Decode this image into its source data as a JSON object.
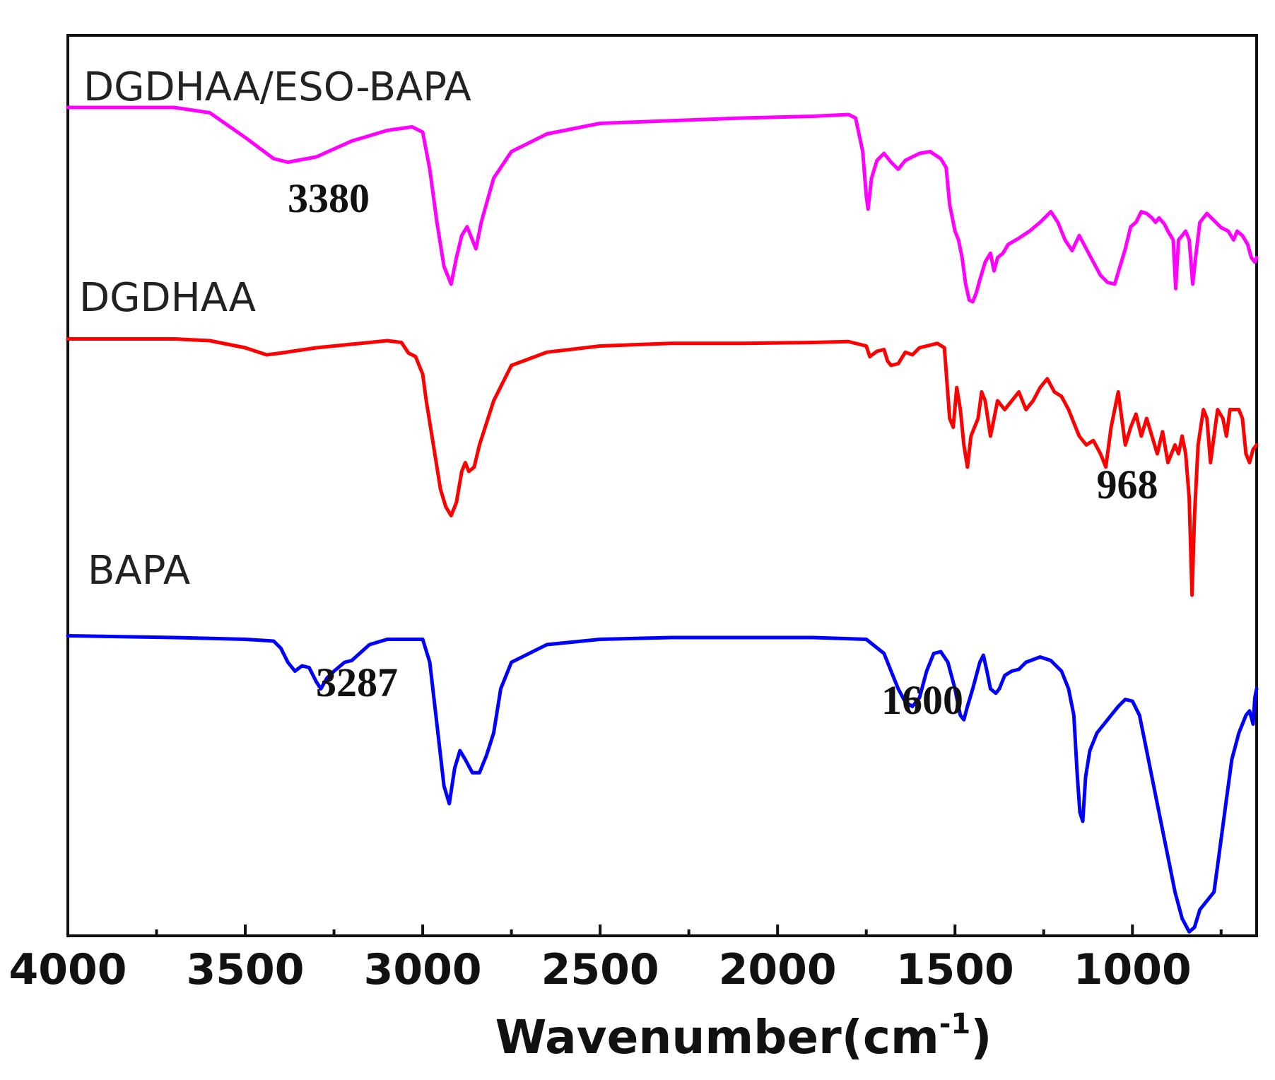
{
  "chart_data": {
    "type": "line",
    "xlabel": "Wavenumber(cm",
    "xlabel_sup": "-1",
    "xlabel_close": ")",
    "xlim": [
      4000,
      650
    ],
    "x_reversed": true,
    "y_axis_ticks_shown": false,
    "grid": false,
    "x_ticks": [
      4000,
      3500,
      3000,
      2500,
      2000,
      1500,
      1000
    ],
    "x_tick_labels": [
      "4000",
      "3500",
      "3000",
      "2500",
      "2000",
      "1500",
      "1000"
    ],
    "series": [
      {
        "name": "DGDHAA/ESO-BAPA",
        "color": "#ff00ff",
        "offset": 0,
        "points": [
          [
            4000,
            0
          ],
          [
            3700,
            0
          ],
          [
            3600,
            -6
          ],
          [
            3500,
            -34
          ],
          [
            3420,
            -58
          ],
          [
            3380,
            -62
          ],
          [
            3300,
            -56
          ],
          [
            3200,
            -38
          ],
          [
            3100,
            -26
          ],
          [
            3030,
            -22
          ],
          [
            3000,
            -28
          ],
          [
            2980,
            -70
          ],
          [
            2960,
            -130
          ],
          [
            2940,
            -180
          ],
          [
            2920,
            -200
          ],
          [
            2905,
            -170
          ],
          [
            2890,
            -145
          ],
          [
            2875,
            -135
          ],
          [
            2860,
            -150
          ],
          [
            2850,
            -160
          ],
          [
            2835,
            -130
          ],
          [
            2800,
            -80
          ],
          [
            2750,
            -50
          ],
          [
            2650,
            -30
          ],
          [
            2500,
            -18
          ],
          [
            2300,
            -15
          ],
          [
            2100,
            -12
          ],
          [
            1900,
            -10
          ],
          [
            1800,
            -8
          ],
          [
            1780,
            -12
          ],
          [
            1760,
            -50
          ],
          [
            1750,
            -100
          ],
          [
            1745,
            -115
          ],
          [
            1735,
            -80
          ],
          [
            1720,
            -60
          ],
          [
            1700,
            -52
          ],
          [
            1680,
            -62
          ],
          [
            1660,
            -70
          ],
          [
            1640,
            -60
          ],
          [
            1600,
            -52
          ],
          [
            1570,
            -50
          ],
          [
            1540,
            -58
          ],
          [
            1525,
            -68
          ],
          [
            1515,
            -110
          ],
          [
            1500,
            -140
          ],
          [
            1490,
            -150
          ],
          [
            1480,
            -170
          ],
          [
            1470,
            -200
          ],
          [
            1460,
            -218
          ],
          [
            1450,
            -220
          ],
          [
            1440,
            -210
          ],
          [
            1430,
            -195
          ],
          [
            1415,
            -175
          ],
          [
            1400,
            -165
          ],
          [
            1390,
            -185
          ],
          [
            1380,
            -170
          ],
          [
            1365,
            -165
          ],
          [
            1350,
            -155
          ],
          [
            1320,
            -148
          ],
          [
            1290,
            -140
          ],
          [
            1260,
            -130
          ],
          [
            1230,
            -118
          ],
          [
            1210,
            -130
          ],
          [
            1190,
            -150
          ],
          [
            1170,
            -162
          ],
          [
            1150,
            -145
          ],
          [
            1130,
            -160
          ],
          [
            1110,
            -175
          ],
          [
            1090,
            -190
          ],
          [
            1070,
            -198
          ],
          [
            1050,
            -200
          ],
          [
            1035,
            -180
          ],
          [
            1020,
            -160
          ],
          [
            1005,
            -135
          ],
          [
            990,
            -130
          ],
          [
            975,
            -118
          ],
          [
            960,
            -120
          ],
          [
            945,
            -125
          ],
          [
            935,
            -130
          ],
          [
            925,
            -125
          ],
          [
            910,
            -132
          ],
          [
            900,
            -140
          ],
          [
            885,
            -150
          ],
          [
            878,
            -205
          ],
          [
            870,
            -150
          ],
          [
            860,
            -145
          ],
          [
            850,
            -140
          ],
          [
            840,
            -150
          ],
          [
            830,
            -200
          ],
          [
            822,
            -170
          ],
          [
            810,
            -130
          ],
          [
            790,
            -120
          ],
          [
            770,
            -128
          ],
          [
            750,
            -136
          ],
          [
            730,
            -140
          ],
          [
            715,
            -150
          ],
          [
            705,
            -140
          ],
          [
            690,
            -145
          ],
          [
            675,
            -155
          ],
          [
            665,
            -170
          ],
          [
            655,
            -175
          ],
          [
            650,
            -170
          ]
        ]
      },
      {
        "name": "DGDHAA",
        "color": "#ff0000",
        "offset": -262,
        "points": [
          [
            4000,
            0
          ],
          [
            3700,
            0
          ],
          [
            3600,
            -2
          ],
          [
            3500,
            -10
          ],
          [
            3440,
            -18
          ],
          [
            3400,
            -16
          ],
          [
            3300,
            -10
          ],
          [
            3200,
            -6
          ],
          [
            3100,
            -2
          ],
          [
            3060,
            -4
          ],
          [
            3040,
            -16
          ],
          [
            3020,
            -20
          ],
          [
            3000,
            -40
          ],
          [
            2990,
            -70
          ],
          [
            2970,
            -120
          ],
          [
            2950,
            -170
          ],
          [
            2935,
            -190
          ],
          [
            2920,
            -200
          ],
          [
            2905,
            -185
          ],
          [
            2890,
            -150
          ],
          [
            2880,
            -140
          ],
          [
            2870,
            -150
          ],
          [
            2855,
            -145
          ],
          [
            2840,
            -120
          ],
          [
            2800,
            -70
          ],
          [
            2750,
            -30
          ],
          [
            2650,
            -15
          ],
          [
            2500,
            -8
          ],
          [
            2300,
            -5
          ],
          [
            2100,
            -5
          ],
          [
            1900,
            -4
          ],
          [
            1800,
            -3
          ],
          [
            1750,
            -8
          ],
          [
            1740,
            -20
          ],
          [
            1720,
            -14
          ],
          [
            1700,
            -12
          ],
          [
            1690,
            -25
          ],
          [
            1680,
            -30
          ],
          [
            1660,
            -28
          ],
          [
            1640,
            -15
          ],
          [
            1620,
            -18
          ],
          [
            1600,
            -10
          ],
          [
            1580,
            -8
          ],
          [
            1550,
            -5
          ],
          [
            1530,
            -10
          ],
          [
            1515,
            -90
          ],
          [
            1505,
            -100
          ],
          [
            1495,
            -55
          ],
          [
            1485,
            -80
          ],
          [
            1475,
            -120
          ],
          [
            1465,
            -145
          ],
          [
            1455,
            -110
          ],
          [
            1445,
            -100
          ],
          [
            1435,
            -90
          ],
          [
            1425,
            -60
          ],
          [
            1415,
            -70
          ],
          [
            1400,
            -110
          ],
          [
            1390,
            -90
          ],
          [
            1380,
            -70
          ],
          [
            1360,
            -80
          ],
          [
            1340,
            -70
          ],
          [
            1320,
            -60
          ],
          [
            1300,
            -80
          ],
          [
            1280,
            -70
          ],
          [
            1260,
            -55
          ],
          [
            1240,
            -45
          ],
          [
            1220,
            -60
          ],
          [
            1200,
            -65
          ],
          [
            1180,
            -80
          ],
          [
            1165,
            -95
          ],
          [
            1150,
            -110
          ],
          [
            1130,
            -120
          ],
          [
            1110,
            -115
          ],
          [
            1090,
            -130
          ],
          [
            1075,
            -145
          ],
          [
            1060,
            -100
          ],
          [
            1040,
            -60
          ],
          [
            1020,
            -120
          ],
          [
            1005,
            -100
          ],
          [
            990,
            -85
          ],
          [
            975,
            -110
          ],
          [
            960,
            -90
          ],
          [
            945,
            -110
          ],
          [
            930,
            -130
          ],
          [
            915,
            -105
          ],
          [
            900,
            -140
          ],
          [
            880,
            -120
          ],
          [
            870,
            -130
          ],
          [
            860,
            -110
          ],
          [
            850,
            -130
          ],
          [
            840,
            -180
          ],
          [
            832,
            -290
          ],
          [
            825,
            -200
          ],
          [
            815,
            -120
          ],
          [
            800,
            -80
          ],
          [
            790,
            -90
          ],
          [
            780,
            -140
          ],
          [
            770,
            -110
          ],
          [
            760,
            -80
          ],
          [
            745,
            -90
          ],
          [
            735,
            -110
          ],
          [
            725,
            -80
          ],
          [
            700,
            -80
          ],
          [
            690,
            -90
          ],
          [
            680,
            -130
          ],
          [
            670,
            -140
          ],
          [
            660,
            -125
          ],
          [
            650,
            -120
          ]
        ]
      },
      {
        "name": "BAPA",
        "color": "#0000ff",
        "offset": -598,
        "points": [
          [
            4000,
            0
          ],
          [
            3700,
            -2
          ],
          [
            3500,
            -4
          ],
          [
            3420,
            -6
          ],
          [
            3400,
            -14
          ],
          [
            3380,
            -30
          ],
          [
            3360,
            -40
          ],
          [
            3340,
            -34
          ],
          [
            3320,
            -36
          ],
          [
            3300,
            -52
          ],
          [
            3287,
            -60
          ],
          [
            3270,
            -48
          ],
          [
            3250,
            -40
          ],
          [
            3220,
            -30
          ],
          [
            3200,
            -28
          ],
          [
            3150,
            -10
          ],
          [
            3100,
            -4
          ],
          [
            3000,
            -4
          ],
          [
            2980,
            -30
          ],
          [
            2960,
            -100
          ],
          [
            2940,
            -170
          ],
          [
            2925,
            -190
          ],
          [
            2910,
            -150
          ],
          [
            2895,
            -130
          ],
          [
            2880,
            -140
          ],
          [
            2860,
            -155
          ],
          [
            2840,
            -155
          ],
          [
            2820,
            -135
          ],
          [
            2800,
            -110
          ],
          [
            2780,
            -60
          ],
          [
            2750,
            -30
          ],
          [
            2650,
            -10
          ],
          [
            2500,
            -4
          ],
          [
            2300,
            -2
          ],
          [
            2100,
            -2
          ],
          [
            1900,
            -2
          ],
          [
            1750,
            -4
          ],
          [
            1700,
            -20
          ],
          [
            1680,
            -40
          ],
          [
            1660,
            -60
          ],
          [
            1640,
            -75
          ],
          [
            1620,
            -80
          ],
          [
            1600,
            -70
          ],
          [
            1580,
            -40
          ],
          [
            1560,
            -20
          ],
          [
            1540,
            -18
          ],
          [
            1520,
            -30
          ],
          [
            1500,
            -60
          ],
          [
            1485,
            -90
          ],
          [
            1475,
            -95
          ],
          [
            1465,
            -80
          ],
          [
            1450,
            -60
          ],
          [
            1430,
            -30
          ],
          [
            1420,
            -22
          ],
          [
            1410,
            -40
          ],
          [
            1400,
            -60
          ],
          [
            1385,
            -65
          ],
          [
            1375,
            -60
          ],
          [
            1360,
            -45
          ],
          [
            1340,
            -40
          ],
          [
            1320,
            -38
          ],
          [
            1300,
            -30
          ],
          [
            1260,
            -24
          ],
          [
            1230,
            -28
          ],
          [
            1200,
            -40
          ],
          [
            1180,
            -60
          ],
          [
            1165,
            -90
          ],
          [
            1155,
            -160
          ],
          [
            1148,
            -200
          ],
          [
            1140,
            -210
          ],
          [
            1132,
            -160
          ],
          [
            1120,
            -130
          ],
          [
            1100,
            -110
          ],
          [
            1080,
            -100
          ],
          [
            1060,
            -90
          ],
          [
            1040,
            -80
          ],
          [
            1020,
            -72
          ],
          [
            1000,
            -74
          ],
          [
            980,
            -90
          ],
          [
            960,
            -130
          ],
          [
            940,
            -170
          ],
          [
            920,
            -210
          ],
          [
            900,
            -250
          ],
          [
            880,
            -290
          ],
          [
            860,
            -320
          ],
          [
            840,
            -335
          ],
          [
            825,
            -330
          ],
          [
            810,
            -310
          ],
          [
            790,
            -300
          ],
          [
            770,
            -290
          ],
          [
            760,
            -260
          ],
          [
            740,
            -200
          ],
          [
            720,
            -140
          ],
          [
            700,
            -110
          ],
          [
            680,
            -90
          ],
          [
            670,
            -85
          ],
          [
            660,
            -100
          ],
          [
            655,
            -70
          ],
          [
            650,
            -60
          ]
        ]
      }
    ],
    "annotations": [
      {
        "text": "3380",
        "x": 3380,
        "series": 0
      },
      {
        "text": "968",
        "x": 968,
        "series": 1
      },
      {
        "text": "3287",
        "x": 3287,
        "series": 2
      },
      {
        "text": "1600",
        "x": 1600,
        "series": 2
      }
    ]
  }
}
